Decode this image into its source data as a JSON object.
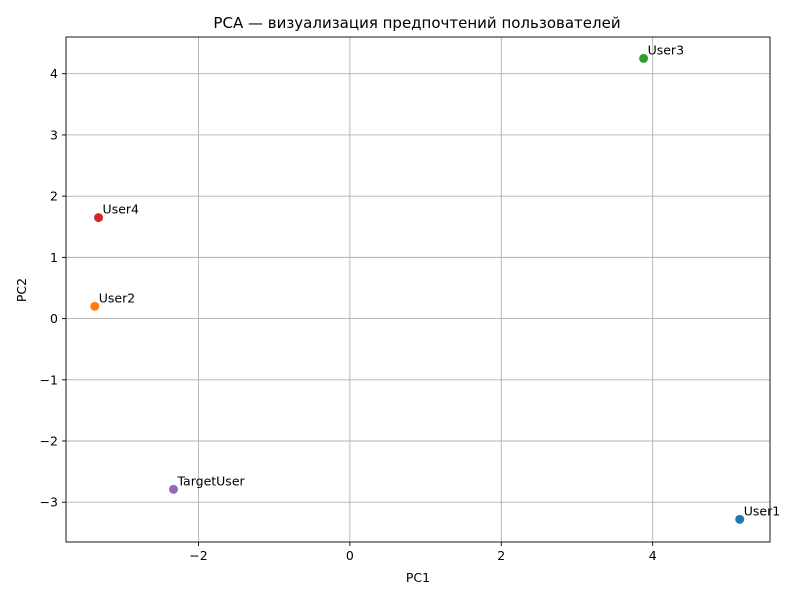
{
  "chart_data": {
    "type": "scatter",
    "title": "PCA — визуализация предпочтений пользователей",
    "xlabel": "PC1",
    "ylabel": "PC2",
    "xlim": [
      -3.75,
      5.55
    ],
    "ylim": [
      -3.65,
      4.6
    ],
    "xticks": [
      -2,
      0,
      2,
      4
    ],
    "yticks": [
      -3,
      -2,
      -1,
      0,
      1,
      2,
      3,
      4
    ],
    "grid": true,
    "points": [
      {
        "label": "User1",
        "x": 5.15,
        "y": -3.28,
        "color": "#1f77b4"
      },
      {
        "label": "User2",
        "x": -3.37,
        "y": 0.2,
        "color": "#ff7f0e"
      },
      {
        "label": "User3",
        "x": 3.88,
        "y": 4.25,
        "color": "#2ca02c"
      },
      {
        "label": "User4",
        "x": -3.32,
        "y": 1.65,
        "color": "#d62728"
      },
      {
        "label": "TargetUser",
        "x": -2.33,
        "y": -2.79,
        "color": "#9467bd"
      }
    ]
  }
}
